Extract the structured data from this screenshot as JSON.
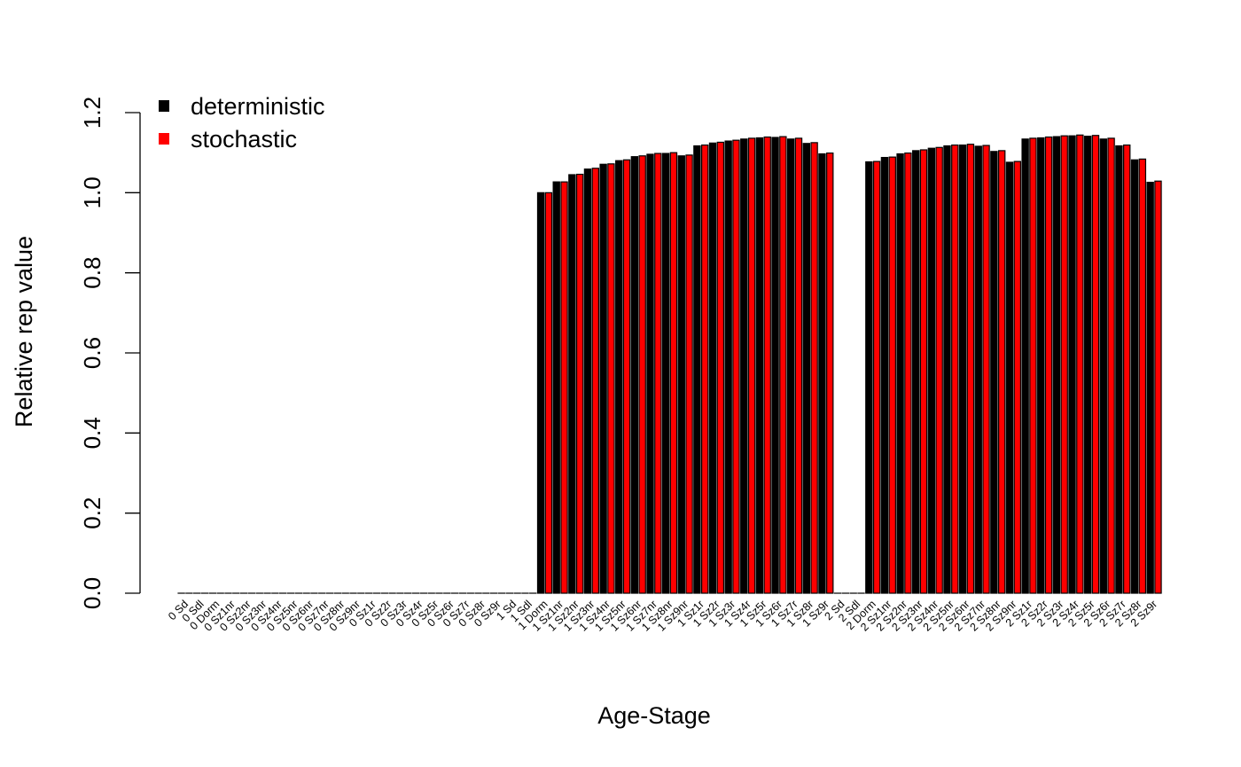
{
  "chart_data": {
    "type": "bar",
    "xlabel": "Age-Stage",
    "ylabel": "Relative rep value",
    "ylim": [
      0,
      1.2
    ],
    "yticks": [
      "0.0",
      "0.2",
      "0.4",
      "0.6",
      "0.8",
      "1.0",
      "1.2"
    ],
    "grid": false,
    "legend_position": "top-left",
    "categories": [
      "0 Sd",
      "0 Sdl",
      "0 Dorm",
      "0 Sz1nr",
      "0 Sz2nr",
      "0 Sz3nr",
      "0 Sz4nr",
      "0 Sz5nr",
      "0 Sz6nr",
      "0 Sz7nr",
      "0 Sz8nr",
      "0 Sz9nr",
      "0 Sz1r",
      "0 Sz2r",
      "0 Sz3r",
      "0 Sz4r",
      "0 Sz5r",
      "0 Sz6r",
      "0 Sz7r",
      "0 Sz8r",
      "0 Sz9r",
      "1 Sd",
      "1 Sdl",
      "1 Dorm",
      "1 Sz1nr",
      "1 Sz2nr",
      "1 Sz3nr",
      "1 Sz4nr",
      "1 Sz5nr",
      "1 Sz6nr",
      "1 Sz7nr",
      "1 Sz8nr",
      "1 Sz9nr",
      "1 Sz1r",
      "1 Sz2r",
      "1 Sz3r",
      "1 Sz4r",
      "1 Sz5r",
      "1 Sz6r",
      "1 Sz7r",
      "1 Sz8r",
      "1 Sz9r",
      "2 Sd",
      "2 Sdl",
      "2 Dorm",
      "2 Sz1nr",
      "2 Sz2nr",
      "2 Sz3nr",
      "2 Sz4nr",
      "2 Sz5nr",
      "2 Sz6nr",
      "2 Sz7nr",
      "2 Sz8nr",
      "2 Sz9nr",
      "2 Sz1r",
      "2 Sz2r",
      "2 Sz3r",
      "2 Sz4r",
      "2 Sz5r",
      "2 Sz6r",
      "2 Sz7r",
      "2 Sz8r",
      "2 Sz9r"
    ],
    "series": [
      {
        "name": "deterministic",
        "color": "#000000",
        "values": [
          0,
          0,
          0,
          0,
          0,
          0,
          0,
          0,
          0,
          0,
          0,
          0,
          0,
          0,
          0,
          0,
          0,
          0,
          0,
          0,
          0,
          0,
          0,
          1.0,
          1.027,
          1.045,
          1.059,
          1.071,
          1.08,
          1.09,
          1.096,
          1.098,
          1.092,
          1.117,
          1.124,
          1.129,
          1.134,
          1.137,
          1.138,
          1.134,
          1.123,
          1.097,
          0,
          0,
          1.077,
          1.088,
          1.097,
          1.105,
          1.111,
          1.117,
          1.119,
          1.116,
          1.103,
          1.076,
          1.134,
          1.137,
          1.14,
          1.142,
          1.141,
          1.134,
          1.117,
          1.082,
          1.026
        ]
      },
      {
        "name": "stochastic",
        "color": "#ff0000",
        "values": [
          0,
          0,
          0,
          0,
          0,
          0,
          0,
          0,
          0,
          0,
          0,
          0,
          0,
          0,
          0,
          0,
          0,
          0,
          0,
          0,
          0,
          0,
          0,
          1.0,
          1.027,
          1.046,
          1.061,
          1.072,
          1.082,
          1.092,
          1.098,
          1.1,
          1.094,
          1.119,
          1.126,
          1.131,
          1.136,
          1.139,
          1.14,
          1.136,
          1.125,
          1.099,
          0,
          0,
          1.078,
          1.089,
          1.099,
          1.107,
          1.113,
          1.119,
          1.121,
          1.118,
          1.105,
          1.078,
          1.136,
          1.139,
          1.142,
          1.144,
          1.143,
          1.136,
          1.119,
          1.084,
          1.029
        ]
      }
    ]
  }
}
